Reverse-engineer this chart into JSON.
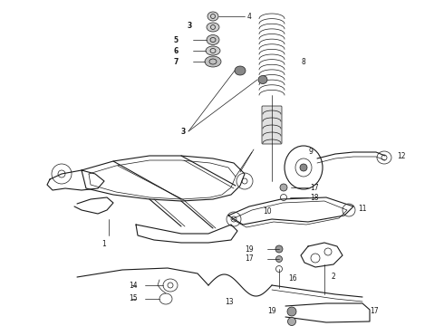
{
  "bg_color": "#ffffff",
  "fig_width": 4.9,
  "fig_height": 3.6,
  "dpi": 100,
  "lc": "#1a1a1a",
  "lw_thin": 0.5,
  "lw_med": 0.8,
  "lw_thick": 1.2,
  "fs": 5.5,
  "fs_bold": 6.0
}
